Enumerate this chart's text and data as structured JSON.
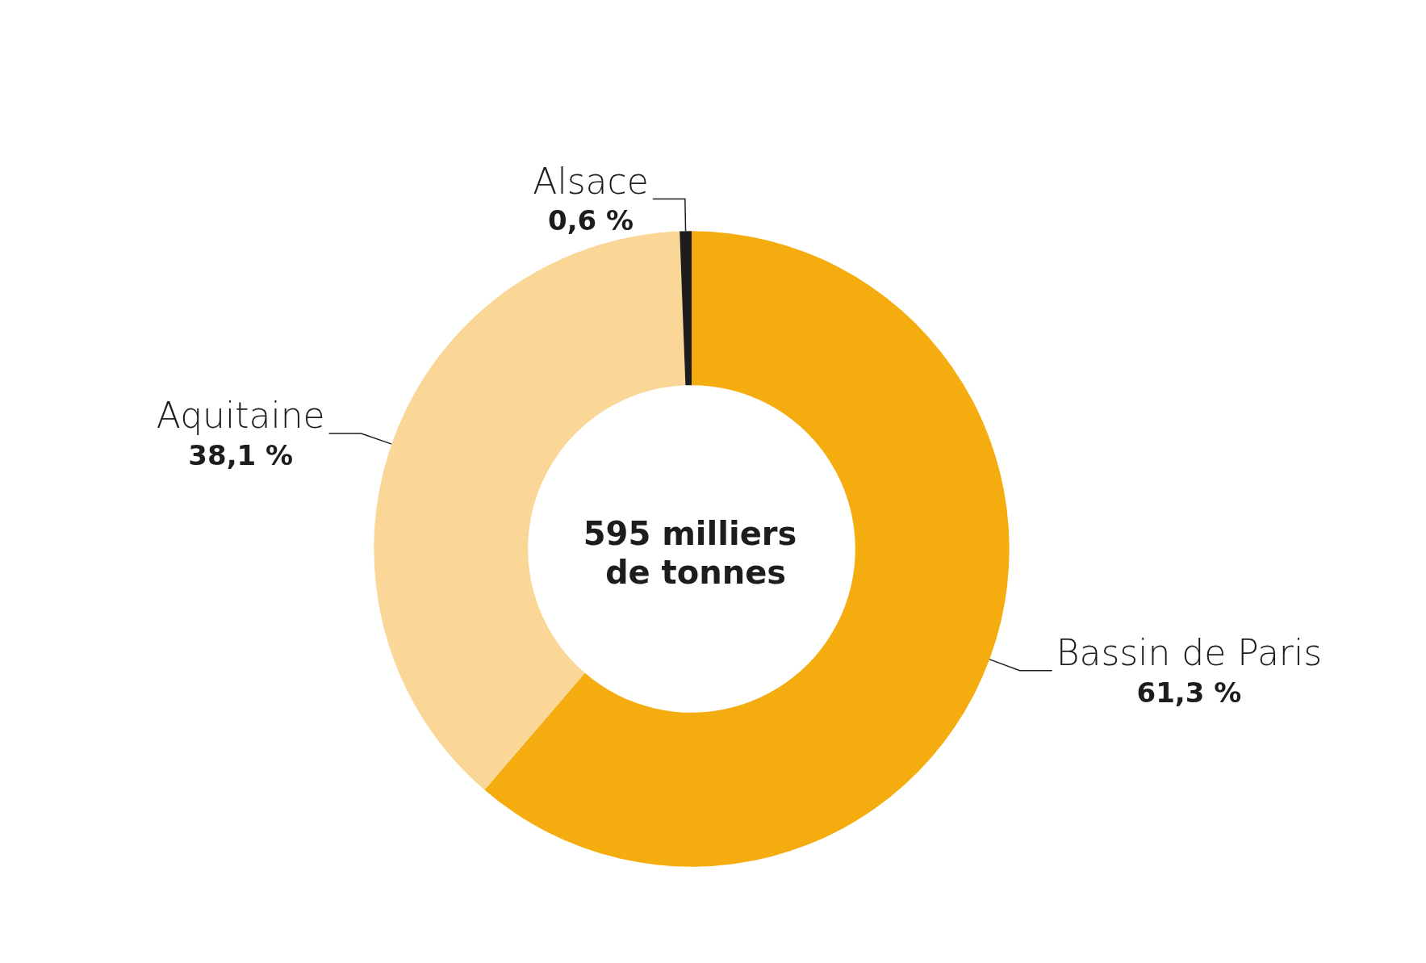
{
  "chart_data": {
    "type": "donut",
    "categories": [
      "Bassin de Paris",
      "Aquitaine",
      "Alsace"
    ],
    "values": [
      61.3,
      38.1,
      0.6
    ],
    "colors": [
      "#f4ac0f",
      "#fad697",
      "#1d1d1b"
    ],
    "value_labels": [
      "61,3 %",
      "38,1 %",
      "0,6 %"
    ],
    "annotations": [
      "595 milliers de tonnes"
    ]
  }
}
